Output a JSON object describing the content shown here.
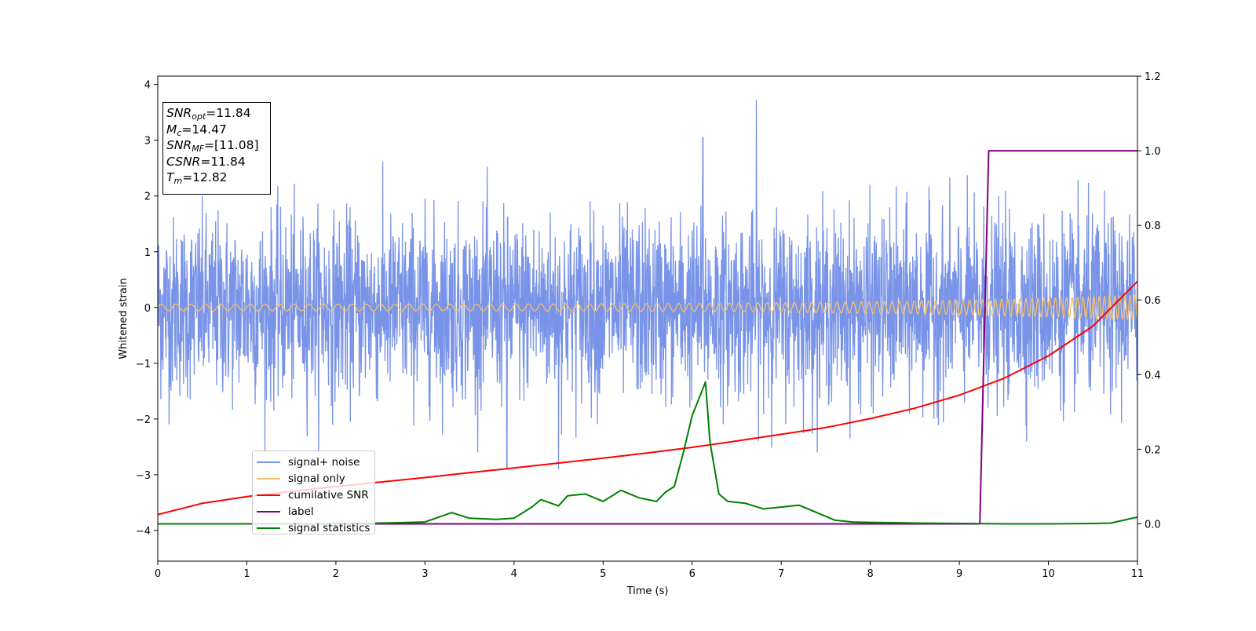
{
  "chart_data": {
    "type": "line",
    "xlabel": "Time (s)",
    "ylabel_left": "Whitened strain",
    "xlim": [
      0,
      11
    ],
    "ylim_left": [
      -4.55,
      4.15
    ],
    "ylim_right": [
      -0.1,
      1.2
    ],
    "x_ticks": [
      0,
      1,
      2,
      3,
      4,
      5,
      6,
      7,
      8,
      9,
      10,
      11
    ],
    "y_left_ticks": [
      -4,
      -3,
      -2,
      -1,
      0,
      1,
      2,
      3,
      4
    ],
    "y_right_ticks": [
      0.0,
      0.2,
      0.4,
      0.6,
      0.8,
      1.0,
      1.2
    ],
    "grid": false,
    "legend_position": "lower-left",
    "annotation_box": {
      "snr_opt_label": "SNR",
      "snr_opt_sub": "opt",
      "snr_opt_value": "=11.84",
      "mc_label": "M",
      "mc_sub": "c",
      "mc_value": "=14.47",
      "snr_mf_label": "SNR",
      "snr_mf_sub": "MF",
      "snr_mf_value": "=[11.08]",
      "csnr_label": "CSNR",
      "csnr_value": "=11.84",
      "tm_label": "T",
      "tm_sub": "m",
      "tm_value": "=12.82"
    },
    "series": [
      {
        "name": "signal+ noise",
        "axis": "left",
        "color": "#7893e8",
        "description": "whitened noisy strain, roughly within [-2.5, 2.5] with spikes to 3.7 near t=6.72 and -2.9 near t=3.92"
      },
      {
        "name": "signal only",
        "axis": "left",
        "color": "#f5c06a",
        "chirp": {
          "amplitude_start": 0.06,
          "amplitude_end": 0.22,
          "freq_start_hz": 6,
          "freq_end_hz": 18
        }
      },
      {
        "name": "cumilative SNR",
        "axis": "right",
        "color": "#ff0000",
        "x": [
          0,
          0.5,
          1,
          1.5,
          2,
          2.5,
          3,
          3.5,
          4,
          4.5,
          5,
          5.5,
          6,
          6.5,
          7,
          7.5,
          8,
          8.5,
          9,
          9.5,
          10,
          10.5,
          11
        ],
        "values": [
          0.025,
          0.055,
          0.073,
          0.087,
          0.1,
          0.112,
          0.124,
          0.137,
          0.15,
          0.163,
          0.176,
          0.19,
          0.205,
          0.222,
          0.24,
          0.258,
          0.282,
          0.31,
          0.345,
          0.39,
          0.45,
          0.53,
          0.65
        ]
      },
      {
        "name": "label",
        "axis": "right",
        "color": "#800080",
        "x": [
          0,
          9.23,
          9.33,
          11
        ],
        "values": [
          0.0,
          0.0,
          1.0,
          1.0
        ]
      },
      {
        "name": "signal statistics",
        "axis": "right",
        "color": "#008000",
        "x": [
          0,
          0.5,
          1,
          1.5,
          2,
          2.3,
          2.5,
          2.7,
          3.0,
          3.3,
          3.5,
          3.8,
          4.0,
          4.2,
          4.3,
          4.5,
          4.6,
          4.8,
          5.0,
          5.2,
          5.4,
          5.6,
          5.7,
          5.8,
          5.9,
          6.0,
          6.1,
          6.15,
          6.2,
          6.3,
          6.4,
          6.6,
          6.8,
          7.0,
          7.2,
          7.4,
          7.6,
          7.8,
          8.0,
          8.5,
          9.0,
          9.5,
          10.0,
          10.5,
          10.7,
          11.0
        ],
        "values": [
          0.0,
          0.0,
          0.0,
          0.0,
          0.0,
          0.001,
          0.002,
          0.003,
          0.005,
          0.03,
          0.015,
          0.012,
          0.015,
          0.045,
          0.065,
          0.048,
          0.075,
          0.08,
          0.06,
          0.09,
          0.07,
          0.06,
          0.085,
          0.1,
          0.19,
          0.29,
          0.35,
          0.38,
          0.22,
          0.08,
          0.06,
          0.055,
          0.04,
          0.045,
          0.05,
          0.03,
          0.01,
          0.005,
          0.004,
          0.002,
          0.001,
          0.0,
          0.0,
          0.001,
          0.002,
          0.018
        ]
      }
    ]
  }
}
